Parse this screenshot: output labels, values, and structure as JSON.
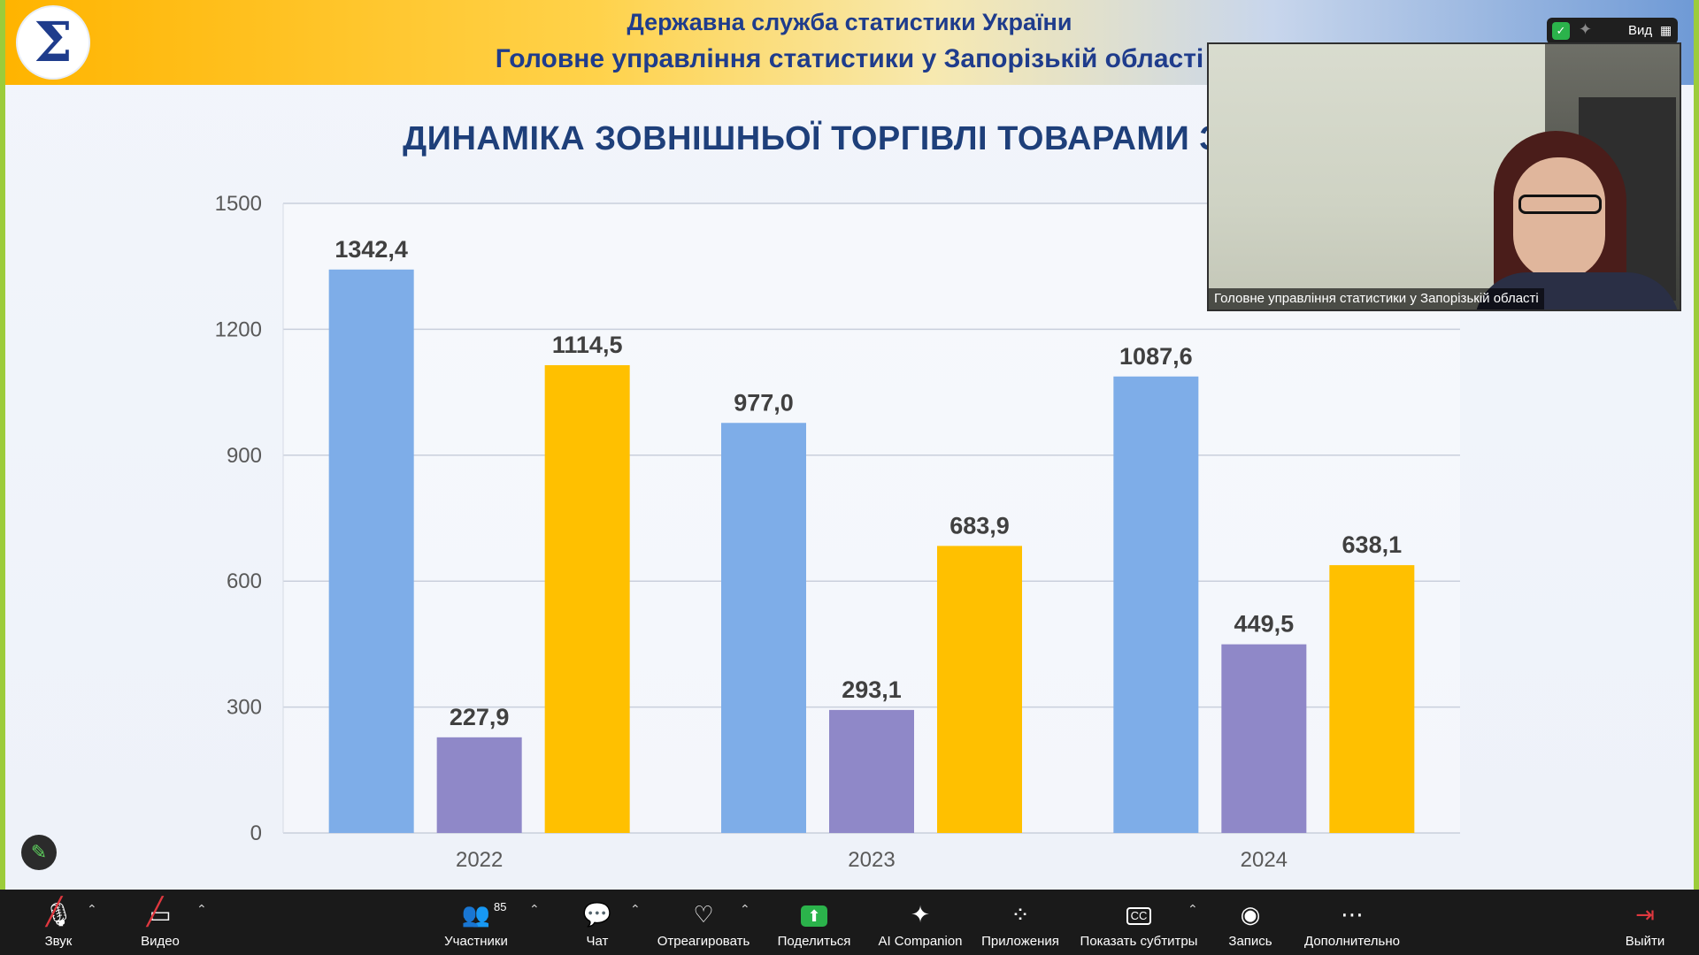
{
  "slide": {
    "logo_glyph": "Σ",
    "header_line1": "Державна служба статистики України",
    "header_line2": "Головне управління статистики у Запорізькій області",
    "title": "ДИНАМІКА ЗОВНІШНЬОЇ ТОРГІВЛІ ТОВАРАМИ З КРА"
  },
  "chart_data": {
    "type": "bar",
    "categories": [
      "2022",
      "2023",
      "2024"
    ],
    "series": [
      {
        "color": "#7eade8",
        "values": [
          1342.4,
          977.0,
          1087.6
        ],
        "labels": [
          "1342,4",
          "977,0",
          "1087,6"
        ]
      },
      {
        "color": "#8f88c8",
        "values": [
          227.9,
          293.1,
          449.5
        ],
        "labels": [
          "227,9",
          "293,1",
          "449,5"
        ]
      },
      {
        "color": "#ffc000",
        "values": [
          1114.5,
          683.9,
          638.1
        ],
        "labels": [
          "1114,5",
          "683,9",
          "638,1"
        ]
      }
    ],
    "y_ticks": [
      "0",
      "300",
      "600",
      "900",
      "1200",
      "1500"
    ],
    "ylim": [
      0,
      1500
    ],
    "grid": true
  },
  "video": {
    "participant_name": "Головне управління статистики у Запорізькій області"
  },
  "view_button": {
    "label": "Вид",
    "shield_icon": "shield-check-icon",
    "sparkle_icon": "sparkle-icon"
  },
  "toolbar": {
    "audio_label": "Звук",
    "video_label": "Видео",
    "participants_label": "Участники",
    "participants_count": "85",
    "chat_label": "Чат",
    "react_label": "Отреагировать",
    "share_label": "Поделиться",
    "ai_label": "AI Companion",
    "apps_label": "Приложения",
    "captions_label": "Показать субтитры",
    "record_label": "Запись",
    "more_label": "Дополнительно",
    "leave_label": "Выйти"
  },
  "colors": {
    "share_border": "#9ccc3a",
    "toolbar_bg": "#1a1a1a",
    "share_green": "#2bb34b",
    "muted_red": "#e0383f"
  }
}
